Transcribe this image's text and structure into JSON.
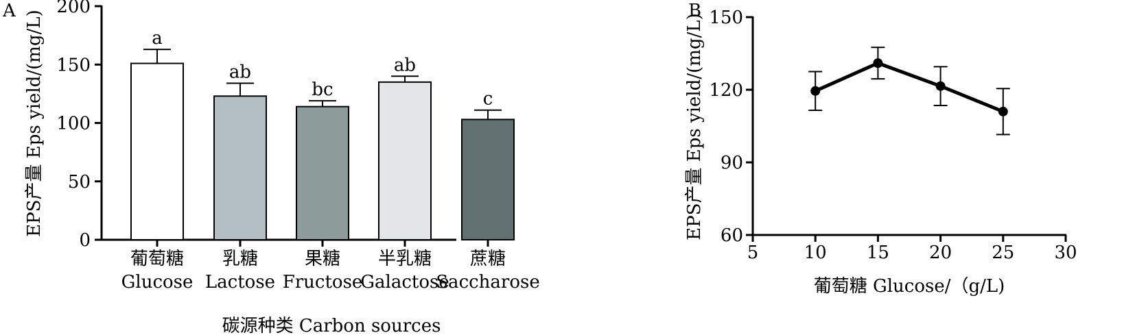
{
  "chart_data": [
    {
      "panel_label": "A",
      "type": "bar",
      "ylabel": "EPS产量 Eps yield/(mg/L)",
      "xlabel": "碳源种类 Carbon sources",
      "ylim": [
        0,
        200
      ],
      "yticks": [
        0,
        50,
        100,
        150,
        200
      ],
      "categories": [
        {
          "cn": "葡萄糖",
          "en": "Glucose"
        },
        {
          "cn": "乳糖",
          "en": "Lactose"
        },
        {
          "cn": "果糖",
          "en": "Fructose"
        },
        {
          "cn": "半乳糖",
          "en": "Galactose"
        },
        {
          "cn": "蔗糖",
          "en": "Saccharose"
        }
      ],
      "values": [
        151,
        123,
        114,
        135,
        103
      ],
      "errors": [
        12,
        11,
        5,
        5,
        8
      ],
      "significance": [
        "a",
        "ab",
        "bc",
        "ab",
        "c"
      ],
      "colors": [
        "#ffffff",
        "#b4bfc3",
        "#8e9b9b",
        "#e3e6e6",
        "#617171"
      ],
      "grid": false
    },
    {
      "panel_label": "B",
      "type": "line",
      "ylabel": "EPS产量 Eps yield/(mg/L)",
      "xlabel": "葡萄糖 Glucose/（g/L)",
      "xlim": [
        5,
        30
      ],
      "ylim": [
        60,
        150
      ],
      "xticks": [
        5,
        10,
        15,
        20,
        25,
        30
      ],
      "yticks": [
        60,
        90,
        120,
        150
      ],
      "x": [
        10,
        15,
        20,
        25
      ],
      "y": [
        119.5,
        131,
        121.5,
        111
      ],
      "errors": [
        8,
        6.5,
        8,
        9.5
      ],
      "grid": false
    }
  ]
}
